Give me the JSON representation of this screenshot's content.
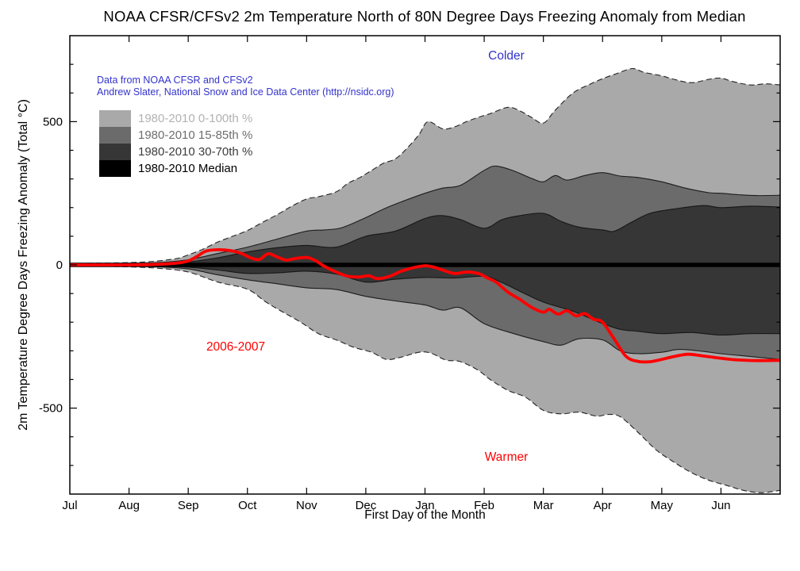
{
  "figure": {
    "title": "NOAA CFSR/CFSv2 2m Temperature North of 80N Degree Days Freezing Anomaly from Median",
    "xlabel": "First Day of the Month",
    "ylabel": "2m Temperature Degree Days Freezing Anomaly (Total °C)",
    "credit_line1": "Data from NOAA CFSR and CFSv2",
    "credit_line2": "Andrew Slater, National Snow and Ice Data Center (http://nsidc.org)",
    "annotation_colder": "Colder",
    "annotation_warmer": "Warmer",
    "annotation_series": "2006-2007",
    "colors": {
      "credit_text": "#3333cc",
      "colder_text": "#3333cc",
      "warmer_text": "#ff0000",
      "series_text": "#ff0000",
      "band_outer": "#a9a9a9",
      "band_mid": "#6b6b6b",
      "band_inner": "#363636",
      "median_line": "#000000",
      "series_line": "#ff0000",
      "boundary_line": "#111111",
      "axis": "#000000"
    }
  },
  "legend": {
    "items": [
      {
        "label": "1980-2010 0-100th %",
        "swatch_color": "#a9a9a9",
        "text_color": "#b2b2b2"
      },
      {
        "label": "1980-2010 15-85th %",
        "swatch_color": "#6b6b6b",
        "text_color": "#6e6e6e"
      },
      {
        "label": "1980-2010 30-70th %",
        "swatch_color": "#363636",
        "text_color": "#3d3d3d"
      },
      {
        "label": "1980-2010 Median",
        "swatch_color": "#000000",
        "text_color": "#000000"
      }
    ]
  },
  "chart_data": {
    "type": "area",
    "subtype": "percentile-bands-with-line",
    "title": "NOAA CFSR/CFSv2 2m Temperature North of 80N Degree Days Freezing Anomaly from Median",
    "xlabel": "First Day of the Month",
    "ylabel": "2m Temperature Degree Days Freezing Anomaly (Total °C)",
    "x_tick_labels": [
      "Jul",
      "Aug",
      "Sep",
      "Oct",
      "Nov",
      "Dec",
      "Jan",
      "Feb",
      "Mar",
      "Apr",
      "May",
      "Jun"
    ],
    "x_months": 12,
    "ylim": [
      -800,
      800
    ],
    "y_major_ticks": [
      {
        "v": 500,
        "label": "500"
      },
      {
        "v": 0,
        "label": "0"
      },
      {
        "v": -500,
        "label": "-500"
      }
    ],
    "y_minor_step": 100,
    "grid": false,
    "legend_position": "upper-left-inside",
    "median_value": 0,
    "bands": [
      {
        "name": "1980-2010 0-100th %",
        "outline": "dashed",
        "upper": {
          "x": [
            0,
            0.5,
            1,
            1.4,
            1.8,
            2,
            2.25,
            2.5,
            2.75,
            3,
            3.25,
            3.5,
            3.75,
            4,
            4.2,
            4.5,
            4.7,
            4.9,
            5.1,
            5.3,
            5.5,
            5.7,
            5.9,
            6.05,
            6.3,
            6.5,
            6.7,
            6.9,
            7.1,
            7.4,
            7.6,
            7.8,
            8.0,
            8.2,
            8.5,
            8.8,
            9.0,
            9.2,
            9.5,
            9.7,
            10.0,
            10.2,
            10.5,
            10.8,
            11.0,
            11.2,
            11.5,
            11.75,
            12
          ],
          "v": [
            5,
            6,
            8,
            12,
            22,
            35,
            55,
            80,
            100,
            120,
            148,
            175,
            205,
            230,
            238,
            255,
            285,
            305,
            330,
            355,
            370,
            408,
            455,
            500,
            475,
            482,
            500,
            515,
            528,
            550,
            538,
            515,
            495,
            540,
            600,
            632,
            650,
            665,
            685,
            672,
            660,
            648,
            636,
            648,
            652,
            640,
            628,
            632,
            628
          ]
        },
        "lower": {
          "x": [
            0,
            0.5,
            1,
            1.5,
            2,
            2.5,
            3,
            3.3,
            3.6,
            3.9,
            4.2,
            4.5,
            4.8,
            5.1,
            5.35,
            5.6,
            5.9,
            6.1,
            6.35,
            6.6,
            6.9,
            7.1,
            7.4,
            7.7,
            8.0,
            8.3,
            8.6,
            8.9,
            9.1,
            9.3,
            9.6,
            9.9,
            10.2,
            10.5,
            10.8,
            11.1,
            11.4,
            11.7,
            12
          ],
          "v": [
            -4,
            -5,
            -7,
            -12,
            -25,
            -60,
            -85,
            -128,
            -165,
            -200,
            -240,
            -262,
            -288,
            -305,
            -330,
            -322,
            -305,
            -308,
            -332,
            -338,
            -368,
            -400,
            -438,
            -462,
            -508,
            -520,
            -514,
            -528,
            -522,
            -530,
            -585,
            -645,
            -688,
            -725,
            -752,
            -770,
            -788,
            -795,
            -787
          ]
        }
      },
      {
        "name": "1980-2010 15-85th %",
        "outline": "solid",
        "upper": {
          "x": [
            0,
            1,
            1.5,
            2,
            2.5,
            3,
            3.5,
            4,
            4.3,
            4.6,
            5,
            5.3,
            5.6,
            6,
            6.3,
            6.6,
            7,
            7.2,
            7.5,
            7.8,
            8,
            8.2,
            8.4,
            8.7,
            9,
            9.3,
            9.6,
            10,
            10.4,
            10.8,
            11,
            11.3,
            11.6,
            12
          ],
          "v": [
            2,
            4,
            8,
            18,
            40,
            62,
            90,
            118,
            122,
            130,
            165,
            195,
            220,
            250,
            268,
            278,
            330,
            345,
            328,
            302,
            290,
            312,
            296,
            312,
            322,
            310,
            305,
            290,
            268,
            252,
            250,
            245,
            242,
            243
          ]
        },
        "lower": {
          "x": [
            0,
            1,
            1.5,
            2,
            2.5,
            3,
            3.5,
            4,
            4.5,
            5,
            5.5,
            6,
            6.3,
            6.6,
            7,
            7.5,
            8,
            8.3,
            8.6,
            9,
            9.3,
            9.6,
            10,
            10.3,
            10.7,
            11,
            11.5,
            12
          ],
          "v": [
            -2,
            -4,
            -7,
            -14,
            -35,
            -52,
            -66,
            -80,
            -86,
            -110,
            -126,
            -140,
            -158,
            -150,
            -205,
            -240,
            -268,
            -280,
            -258,
            -262,
            -300,
            -310,
            -305,
            -295,
            -302,
            -310,
            -320,
            -330
          ]
        }
      },
      {
        "name": "1980-2010 30-70th %",
        "outline": "solid",
        "upper": {
          "x": [
            0,
            1,
            1.5,
            2,
            2.5,
            3,
            3.5,
            4,
            4.5,
            5,
            5.5,
            6,
            6.3,
            6.6,
            7,
            7.3,
            7.6,
            8,
            8.3,
            8.6,
            9,
            9.2,
            9.5,
            9.8,
            10.2,
            10.7,
            11,
            11.5,
            12
          ],
          "v": [
            1,
            2,
            4,
            10,
            25,
            45,
            60,
            68,
            62,
            100,
            118,
            162,
            172,
            158,
            128,
            158,
            172,
            180,
            152,
            132,
            122,
            118,
            150,
            180,
            195,
            207,
            200,
            205,
            202
          ]
        },
        "lower": {
          "x": [
            0,
            1,
            1.5,
            2,
            2.5,
            3,
            3.5,
            4,
            4.5,
            5,
            5.5,
            6,
            6.5,
            7,
            7.3,
            7.6,
            8,
            8.5,
            9,
            9.3,
            9.6,
            10,
            10.5,
            11,
            11.5,
            12
          ],
          "v": [
            -1,
            -2,
            -4,
            -8,
            -18,
            -30,
            -28,
            -22,
            -32,
            -60,
            -50,
            -44,
            -46,
            -40,
            -62,
            -92,
            -130,
            -162,
            -205,
            -225,
            -232,
            -240,
            -236,
            -245,
            -240,
            -240
          ]
        }
      }
    ],
    "series": [
      {
        "name": "2006-2007",
        "type": "line",
        "x": [
          0,
          0.5,
          1,
          1.5,
          1.8,
          2,
          2.15,
          2.3,
          2.5,
          2.7,
          2.9,
          3.05,
          3.2,
          3.35,
          3.5,
          3.65,
          3.8,
          4,
          4.15,
          4.3,
          4.5,
          4.7,
          4.9,
          5.05,
          5.2,
          5.4,
          5.6,
          5.8,
          6,
          6.15,
          6.3,
          6.5,
          6.7,
          6.9,
          7.05,
          7.2,
          7.4,
          7.6,
          7.8,
          8,
          8.1,
          8.25,
          8.4,
          8.55,
          8.7,
          8.85,
          9,
          9.2,
          9.4,
          9.6,
          9.8,
          10,
          10.2,
          10.45,
          10.7,
          11,
          11.3,
          11.6,
          12
        ],
        "v": [
          0,
          0,
          0,
          2,
          6,
          14,
          30,
          48,
          53,
          50,
          40,
          25,
          19,
          39,
          28,
          17,
          22,
          26,
          15,
          -5,
          -25,
          -40,
          -42,
          -38,
          -48,
          -40,
          -22,
          -10,
          -3,
          -8,
          -18,
          -30,
          -25,
          -30,
          -45,
          -60,
          -95,
          -120,
          -148,
          -165,
          -155,
          -172,
          -160,
          -178,
          -170,
          -190,
          -200,
          -260,
          -320,
          -337,
          -338,
          -330,
          -320,
          -312,
          -318,
          -326,
          -332,
          -334,
          -333
        ]
      }
    ]
  }
}
